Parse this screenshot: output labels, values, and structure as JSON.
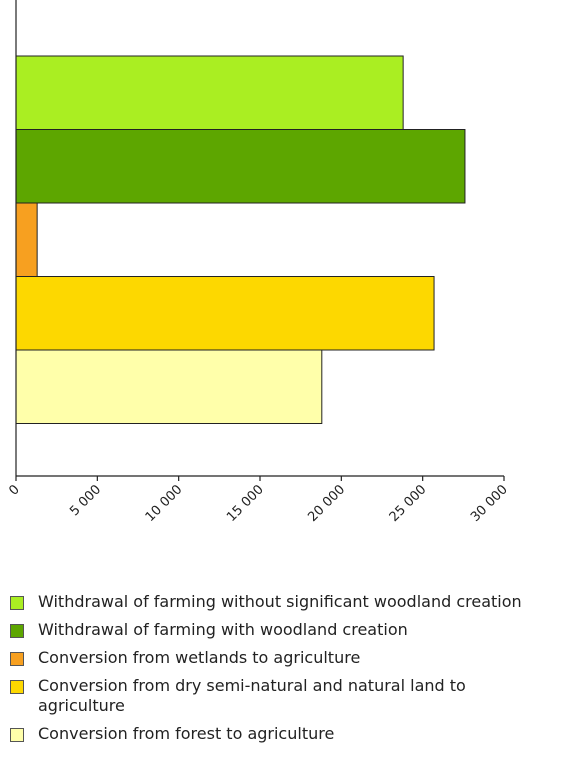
{
  "chart_data": {
    "type": "bar",
    "orientation": "horizontal",
    "title": "",
    "xlabel": "",
    "ylabel": "",
    "xlim": [
      0,
      30000
    ],
    "ticks": [
      0,
      5000,
      10000,
      15000,
      20000,
      25000,
      30000
    ],
    "tick_labels": [
      "0",
      "5 000",
      "10 000",
      "15 000",
      "20 000",
      "25 000",
      "30 000"
    ],
    "grid": false,
    "legend_position": "bottom",
    "series": [
      {
        "name": "Withdrawal of farming without significant woodland creation",
        "value": 23800,
        "color": "#aaee22"
      },
      {
        "name": "Withdrawal of farming with woodland creation",
        "value": 27600,
        "color": "#5da600"
      },
      {
        "name": "Conversion from wetlands to agriculture",
        "value": 1300,
        "color": "#f7a020"
      },
      {
        "name": "Conversion from dry semi-natural and natural land to agriculture",
        "value": 25700,
        "color": "#fdd800"
      },
      {
        "name": "Conversion from forest to agriculture",
        "value": 18800,
        "color": "#ffffaa"
      }
    ]
  }
}
